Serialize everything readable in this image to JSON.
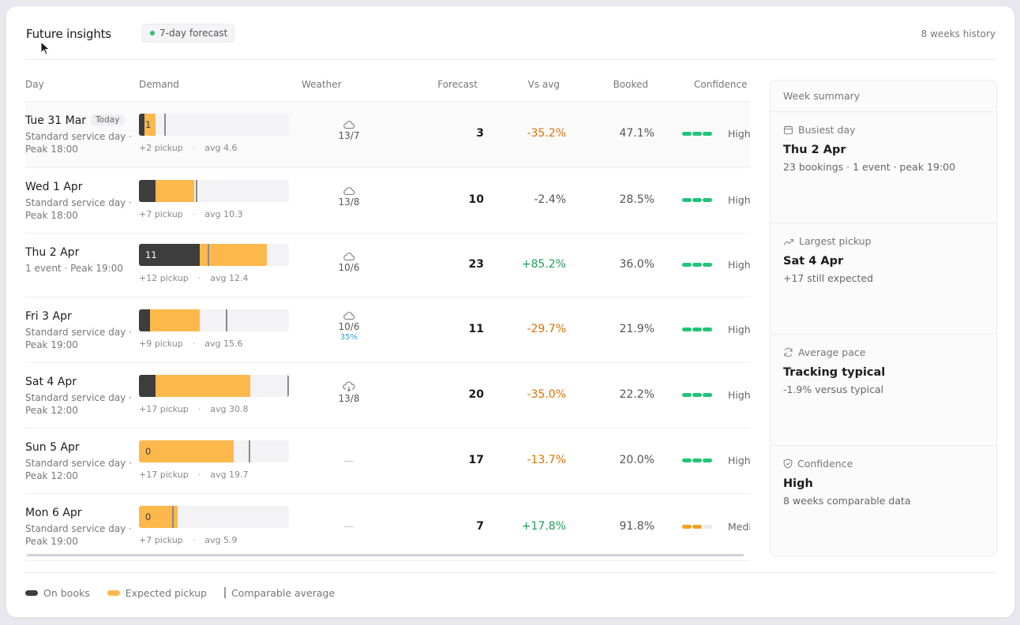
{
  "header": {
    "title": "Future insights",
    "badge": "7-day forecast",
    "history": "8 weeks history"
  },
  "columns": {
    "day": "Day",
    "demand": "Demand",
    "weather": "Weather",
    "forecast": "Forecast",
    "vs_avg": "Vs avg",
    "booked": "Booked",
    "confidence": "Confidence"
  },
  "today_label": "Today",
  "rows": [
    {
      "day": "Tue 31 Mar",
      "today": true,
      "sub": "Standard service day · Peak 18:00",
      "on_books": 1,
      "pickup": 2,
      "avg": 4.6,
      "pickup_text": "+2 pickup",
      "avg_text": "avg 4.6",
      "weather_icon": "cloud-icon",
      "temp": "13/7",
      "rain": "",
      "forecast": "3",
      "vs_avg": "-35.2%",
      "vs_kind": "neg",
      "booked": "47.1%",
      "confidence": "High",
      "conf_level": 3
    },
    {
      "day": "Wed 1 Apr",
      "today": false,
      "sub": "Standard service day · Peak 18:00",
      "on_books": 3,
      "pickup": 7,
      "avg": 10.3,
      "pickup_text": "+7 pickup",
      "avg_text": "avg 10.3",
      "weather_icon": "cloud-icon",
      "temp": "13/8",
      "rain": "",
      "forecast": "10",
      "vs_avg": "-2.4%",
      "vs_kind": "neutral",
      "booked": "28.5%",
      "confidence": "High",
      "conf_level": 3
    },
    {
      "day": "Thu 2 Apr",
      "today": false,
      "sub": "1 event · Peak 19:00",
      "on_books": 11,
      "pickup": 12,
      "avg": 12.4,
      "pickup_text": "+12 pickup",
      "avg_text": "avg 12.4",
      "weather_icon": "cloud-icon",
      "temp": "10/6",
      "rain": "",
      "forecast": "23",
      "vs_avg": "+85.2%",
      "vs_kind": "pos",
      "booked": "36.0%",
      "confidence": "High",
      "conf_level": 3
    },
    {
      "day": "Fri 3 Apr",
      "today": false,
      "sub": "Standard service day · Peak 19:00",
      "on_books": 2,
      "pickup": 9,
      "avg": 15.6,
      "pickup_text": "+9 pickup",
      "avg_text": "avg 15.6",
      "weather_icon": "cloud-icon",
      "temp": "10/6",
      "rain": "35%",
      "forecast": "11",
      "vs_avg": "-29.7%",
      "vs_kind": "neg",
      "booked": "21.9%",
      "confidence": "High",
      "conf_level": 3
    },
    {
      "day": "Sat 4 Apr",
      "today": false,
      "sub": "Standard service day · Peak 12:00",
      "on_books": 3,
      "pickup": 17,
      "avg": 30.8,
      "pickup_text": "+17 pickup",
      "avg_text": "avg 30.8",
      "weather_icon": "cloud-download-icon",
      "temp": "13/8",
      "rain": "",
      "forecast": "20",
      "vs_avg": "-35.0%",
      "vs_kind": "neg",
      "booked": "22.2%",
      "confidence": "High",
      "conf_level": 3
    },
    {
      "day": "Sun 5 Apr",
      "today": false,
      "sub": "Standard service day · Peak 12:00",
      "on_books": 0,
      "pickup": 17,
      "avg": 19.7,
      "pickup_text": "+17 pickup",
      "avg_text": "avg 19.7",
      "weather_icon": "",
      "temp": "—",
      "rain": "",
      "forecast": "17",
      "vs_avg": "-13.7%",
      "vs_kind": "neg",
      "booked": "20.0%",
      "confidence": "High",
      "conf_level": 3
    },
    {
      "day": "Mon 6 Apr",
      "today": false,
      "sub": "Standard service day · Peak 19:00",
      "on_books": 0,
      "pickup": 7,
      "avg": 5.9,
      "pickup_text": "+7 pickup",
      "avg_text": "avg 5.9",
      "weather_icon": "",
      "temp": "—",
      "rain": "",
      "forecast": "7",
      "vs_avg": "+17.8%",
      "vs_kind": "pos",
      "booked": "91.8%",
      "confidence": "Medium",
      "conf_level": 2
    }
  ],
  "summary": {
    "title": "Week summary",
    "sections": [
      {
        "icon": "calendar-icon",
        "label": "Busiest day",
        "value": "Thu 2 Apr",
        "detail": "23 bookings · 1 event · peak 19:00"
      },
      {
        "icon": "trending-up-icon",
        "label": "Largest pickup",
        "value": "Sat 4 Apr",
        "detail": "+17 still expected"
      },
      {
        "icon": "refresh-icon",
        "label": "Average pace",
        "value": "Tracking typical",
        "detail": "-1.9% versus typical"
      },
      {
        "icon": "shield-check-icon",
        "label": "Confidence",
        "value": "High",
        "detail": "8 weeks comparable data"
      }
    ]
  },
  "legend": {
    "on_books": "On books",
    "expected_pickup": "Expected pickup",
    "comparable_average": "Comparable average"
  },
  "colors": {
    "on_books": "#3d3d3d",
    "pickup": "#fdb84c",
    "positive": "#1d9e57",
    "negative": "#e07100",
    "conf_high": "#22c37a",
    "conf_medium": "#f4a21e"
  }
}
